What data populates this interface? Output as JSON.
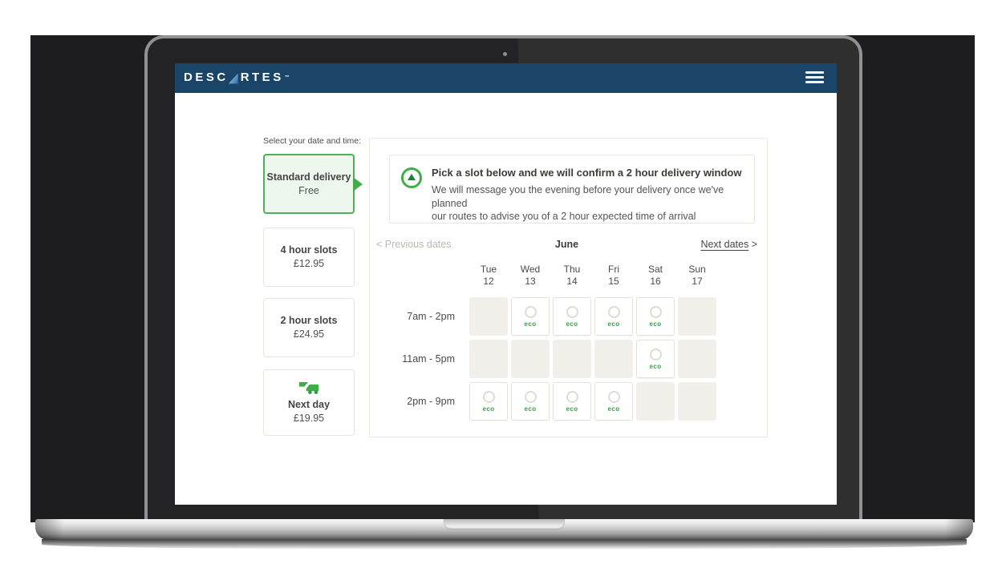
{
  "header": {
    "logo_text_1": "DESC",
    "logo_text_2": "RTES",
    "logo_tm": "™",
    "menu_icon": "hamburger-icon"
  },
  "sidebar": {
    "label": "Select your date and time:",
    "options": [
      {
        "id": "standard-delivery",
        "title": "Standard delivery",
        "price": "Free",
        "selected": true
      },
      {
        "id": "4-hour-slots",
        "title": "4 hour slots",
        "price": "£12.95",
        "selected": false
      },
      {
        "id": "2-hour-slots",
        "title": "2 hour slots",
        "price": "£24.95",
        "selected": false
      },
      {
        "id": "next-day",
        "title": "Next day",
        "price": "£19.95",
        "selected": false,
        "icon": "truck-icon"
      }
    ]
  },
  "panel": {
    "info": {
      "icon": "clock-icon",
      "title": "Pick a slot below and we will confirm a 2 hour delivery window",
      "body_line_1": "We will message you the evening before your delivery once we've planned",
      "body_line_2": "our routes to advise you of a 2 hour expected time of arrival"
    },
    "nav": {
      "prev_chevron": "<",
      "prev_label": "Previous dates",
      "month": "June",
      "next_label": "Next dates",
      "next_chevron": ">"
    },
    "days": [
      {
        "name": "Tue",
        "date": "12"
      },
      {
        "name": "Wed",
        "date": "13"
      },
      {
        "name": "Thu",
        "date": "14"
      },
      {
        "name": "Fri",
        "date": "15"
      },
      {
        "name": "Sat",
        "date": "16"
      },
      {
        "name": "Sun",
        "date": "17"
      }
    ],
    "eco_label": "eco",
    "slot_rows": [
      {
        "label": "7am - 2pm",
        "cells": [
          "unavailable",
          "available",
          "available",
          "available",
          "available",
          "unavailable"
        ]
      },
      {
        "label": "11am - 5pm",
        "cells": [
          "unavailable",
          "unavailable",
          "unavailable",
          "unavailable",
          "available",
          "unavailable"
        ]
      },
      {
        "label": "2pm - 9pm",
        "cells": [
          "available",
          "available",
          "available",
          "available",
          "unavailable",
          "unavailable"
        ]
      }
    ]
  },
  "colors": {
    "header_blue": "#1a4468",
    "accent_green": "#45ac4e",
    "eco_green": "#3c9c47",
    "selected_card_bg": "#eef7ee"
  }
}
